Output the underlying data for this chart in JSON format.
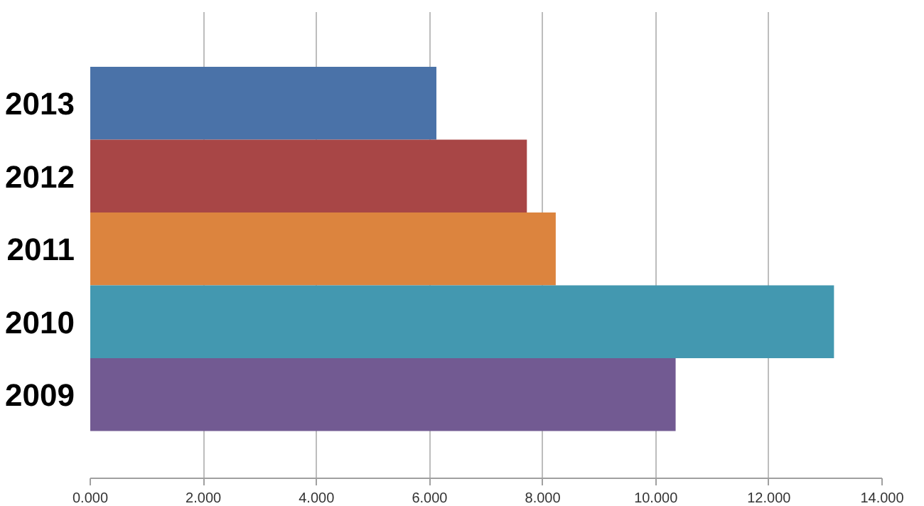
{
  "chart_data": {
    "type": "bar",
    "orientation": "horizontal",
    "categories": [
      "2013",
      "2012",
      "2011",
      "2010",
      "2009"
    ],
    "values": [
      6.12,
      7.72,
      8.23,
      13.15,
      10.35
    ],
    "colors": [
      "#4a72a8",
      "#a84646",
      "#dc843e",
      "#4398b0",
      "#725a92"
    ],
    "xlim": [
      0,
      14
    ],
    "xticks": [
      {
        "value": 0,
        "label": "0.000"
      },
      {
        "value": 2,
        "label": "2.000"
      },
      {
        "value": 4,
        "label": "4.000"
      },
      {
        "value": 6,
        "label": "6.000"
      },
      {
        "value": 8,
        "label": "8.000"
      },
      {
        "value": 10,
        "label": "10.000"
      },
      {
        "value": 12,
        "label": "12.000"
      },
      {
        "value": 14,
        "label": "14.000"
      }
    ],
    "grid": "x"
  }
}
